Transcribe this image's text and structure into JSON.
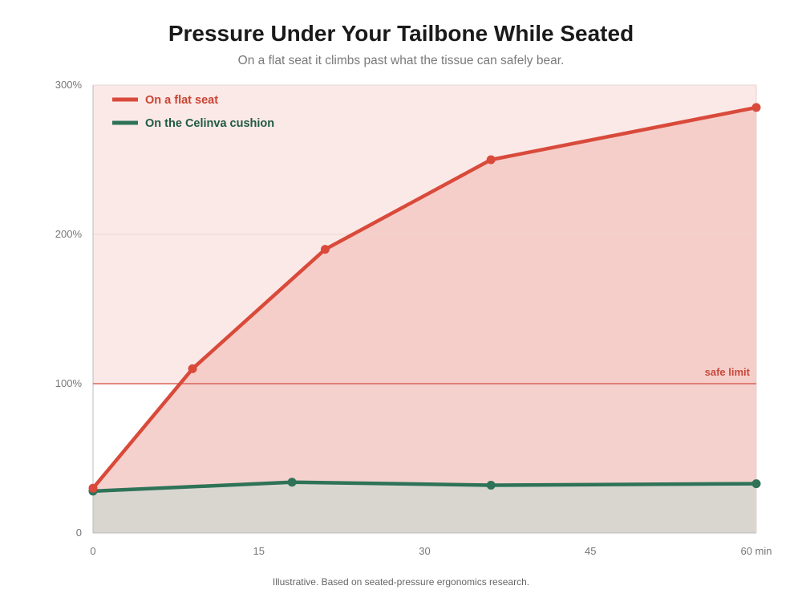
{
  "title": "Pressure Under Your Tailbone While Seated",
  "subtitle": "On a flat seat it climbs past what the tissue can safely bear.",
  "footnote": "Illustrative. Based on seated-pressure ergonomics research.",
  "colors": {
    "flat": "#d94a3b",
    "cushion": "#2e7358",
    "danger_band": "#fbe9e7",
    "flat_fill": "#f3c9c4",
    "cushion_fill": "#d9d6d0",
    "limit_line": "#d9655a",
    "axis": "#bbbbbb"
  },
  "chart_data": {
    "type": "line",
    "title": "Pressure Under Your Tailbone While Seated",
    "subtitle": "On a flat seat it climbs past what the tissue can safely bear.",
    "xlim": [
      0,
      60
    ],
    "ylim": [
      0,
      300
    ],
    "x_ticks": [
      0,
      15,
      30,
      45,
      60
    ],
    "x_tick_labels": [
      "0",
      "15",
      "30",
      "45",
      "60 min"
    ],
    "y_ticks": [
      0,
      100,
      200,
      300
    ],
    "y_tick_labels": [
      "0",
      "100%",
      "200%",
      "300%"
    ],
    "grid": "horizontal",
    "legend_position": "top-left",
    "series": [
      {
        "name": "On a flat seat",
        "color": "#d94a3b",
        "points": [
          [
            0,
            30
          ],
          [
            9,
            110
          ],
          [
            21,
            190
          ],
          [
            36,
            250
          ],
          [
            60,
            285
          ]
        ]
      },
      {
        "name": "On the Celinva cushion",
        "color": "#2e7358",
        "points": [
          [
            0,
            28
          ],
          [
            18,
            34
          ],
          [
            36,
            32
          ],
          [
            60,
            33
          ]
        ]
      }
    ],
    "reference_line": {
      "y": 100,
      "label": "safe limit"
    }
  }
}
